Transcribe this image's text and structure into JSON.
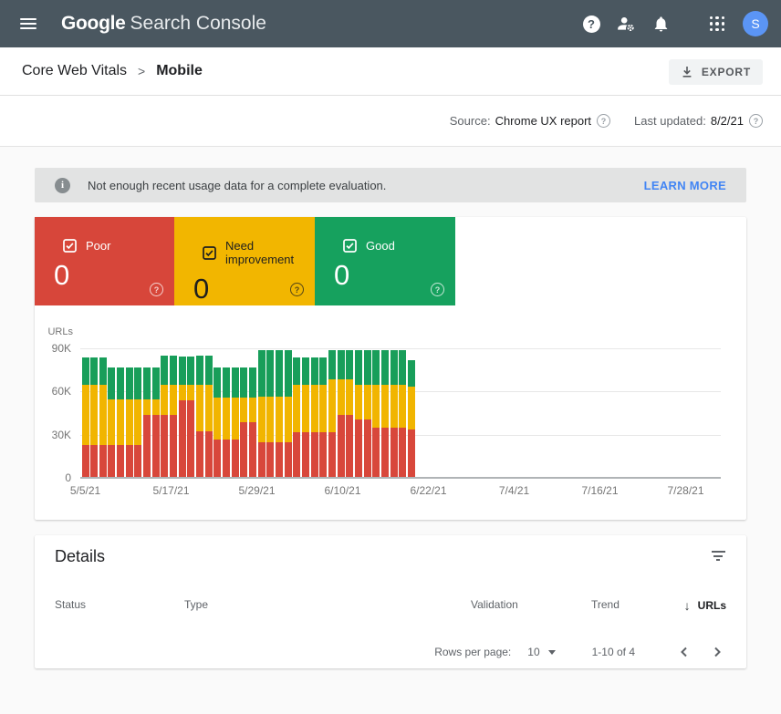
{
  "header": {
    "app_title_bold": "Google",
    "app_title_rest": "Search Console",
    "avatar_initial": "S",
    "colors": {
      "bar": "#4a5760",
      "avatar": "#5b95f5"
    }
  },
  "icons": {
    "question_mark": "?",
    "info": "i"
  },
  "breadcrumb": {
    "section": "Core Web Vitals",
    "separator": ">",
    "page": "Mobile",
    "export_label": "EXPORT"
  },
  "meta": {
    "source_label": "Source:",
    "source_value": "Chrome UX report",
    "updated_label": "Last updated:",
    "updated_value": "8/2/21"
  },
  "banner": {
    "message": "Not enough recent usage data for a complete evaluation.",
    "action": "LEARN MORE"
  },
  "summary_cards": [
    {
      "label": "Poor",
      "value": "0",
      "color": "#d7463a",
      "text_color": "#ffffff"
    },
    {
      "label": "Need improvement",
      "value": "0",
      "color": "#f2b600",
      "text_color": "#1f1f1f"
    },
    {
      "label": "Good",
      "value": "0",
      "color": "#16a15e",
      "text_color": "#ffffff"
    }
  ],
  "chart_data": {
    "type": "bar",
    "stacked": true,
    "ylabel": "URLs",
    "ylim": [
      0,
      90000
    ],
    "yticks": [
      "90K",
      "60K",
      "30K",
      "0"
    ],
    "x_tick_labels": [
      "5/5/21",
      "5/17/21",
      "5/29/21",
      "6/10/21",
      "6/22/21",
      "7/4/21",
      "7/16/21",
      "7/28/21"
    ],
    "values_unit": "thousands of URLs (estimated from gridlines)",
    "num_bars": 38,
    "series": [
      {
        "name": "Poor",
        "color": "#d8473b",
        "values": [
          22,
          22,
          22,
          22,
          22,
          22,
          22,
          43,
          43,
          43,
          43,
          53,
          53,
          32,
          32,
          26,
          26,
          26,
          38,
          38,
          24,
          24,
          24,
          24,
          31,
          31,
          31,
          31,
          31,
          43,
          43,
          40,
          40,
          34,
          34,
          34,
          34,
          33
        ]
      },
      {
        "name": "Need improvement",
        "color": "#f1b500",
        "values": [
          42,
          42,
          42,
          32,
          32,
          32,
          32,
          11,
          11,
          21,
          21,
          11,
          11,
          32,
          32,
          29,
          29,
          29,
          17,
          17,
          32,
          32,
          32,
          32,
          33,
          33,
          33,
          33,
          37,
          25,
          25,
          24,
          24,
          30,
          30,
          30,
          30,
          30
        ]
      },
      {
        "name": "Good",
        "color": "#189e5a",
        "values": [
          19,
          19,
          19,
          22,
          22,
          22,
          22,
          22,
          22,
          20,
          20,
          20,
          20,
          20,
          20,
          21,
          21,
          21,
          21,
          21,
          32,
          32,
          32,
          32,
          19,
          19,
          19,
          19,
          20,
          20,
          20,
          24,
          24,
          24,
          24,
          24,
          24,
          18
        ]
      }
    ],
    "legend_position": "cards-above",
    "grid": true
  },
  "details": {
    "title": "Details",
    "columns": [
      "Status",
      "Type",
      "Validation",
      "Trend",
      "URLs"
    ],
    "sorted_column": "URLs",
    "sort_arrow": "↓",
    "rows": [],
    "pagination": {
      "rows_per_page_label": "Rows per page:",
      "rows_per_page": "10",
      "range": "1-10 of 4",
      "prev": "chevron-left",
      "next": "chevron-right"
    }
  }
}
